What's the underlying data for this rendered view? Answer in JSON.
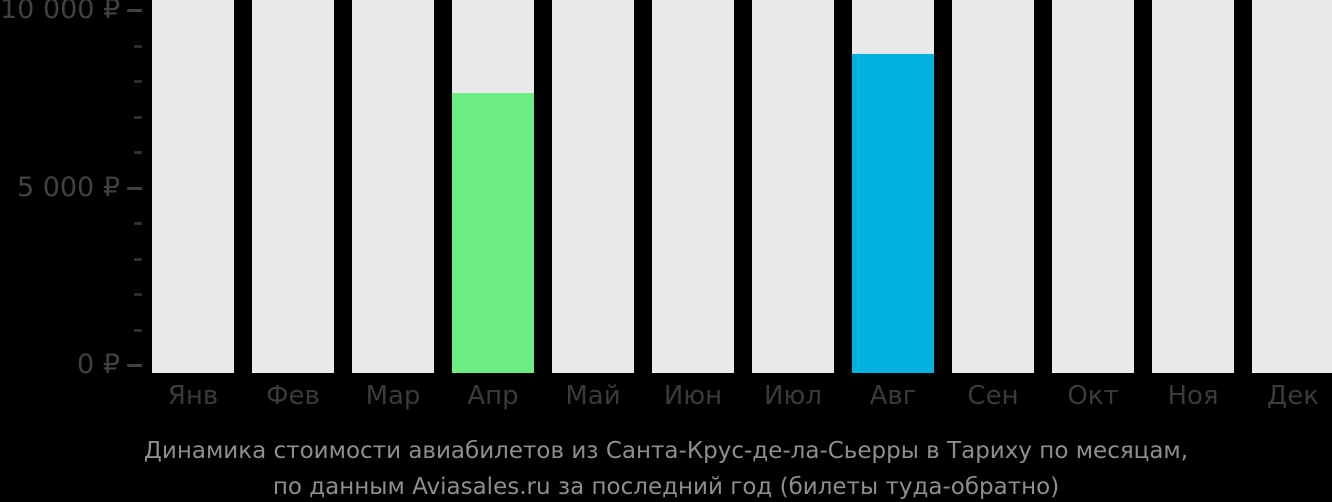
{
  "colors": {
    "background": "#000000",
    "column_track": "#e9e9e9",
    "april_bar": "#6cee85",
    "august_bar": "#00b2e0",
    "axis_text": "#414141",
    "month_text": "#3a3a3a",
    "caption_text": "#8e8e8e"
  },
  "chart_data": {
    "type": "bar",
    "title": "Динамика стоимости авиабилетов из Санта-Крус-де-ла-Сьерры в Тариху по месяцам, по данным Aviasales.ru за последний год (билеты туда-обратно)",
    "categories": [
      "Янв",
      "Фев",
      "Мар",
      "Апр",
      "Май",
      "Июн",
      "Июл",
      "Авг",
      "Сен",
      "Окт",
      "Ноя",
      "Дек"
    ],
    "values": [
      null,
      null,
      null,
      7700,
      null,
      null,
      null,
      8800,
      null,
      null,
      null,
      null
    ],
    "bar_colors": [
      null,
      null,
      null,
      "#6cee85",
      null,
      null,
      null,
      "#00b2e0",
      null,
      null,
      null,
      null
    ],
    "ylabel": "",
    "xlabel": "",
    "ylim": [
      0,
      10000
    ],
    "y_minor_step": 1000,
    "y_major_ticks": [
      {
        "value": 0,
        "label": "0 ₽"
      },
      {
        "value": 5000,
        "label": "5 000 ₽"
      },
      {
        "value": 10000,
        "label": "10 000 ₽"
      }
    ],
    "grid": false,
    "legend": false,
    "currency": "₽"
  },
  "caption": {
    "line1": "Динамика стоимости авиабилетов из Санта-Крус-де-ла-Сьерры в Тариху по месяцам,",
    "line2": "по данным Aviasales.ru за последний год (билеты туда-обратно)"
  }
}
